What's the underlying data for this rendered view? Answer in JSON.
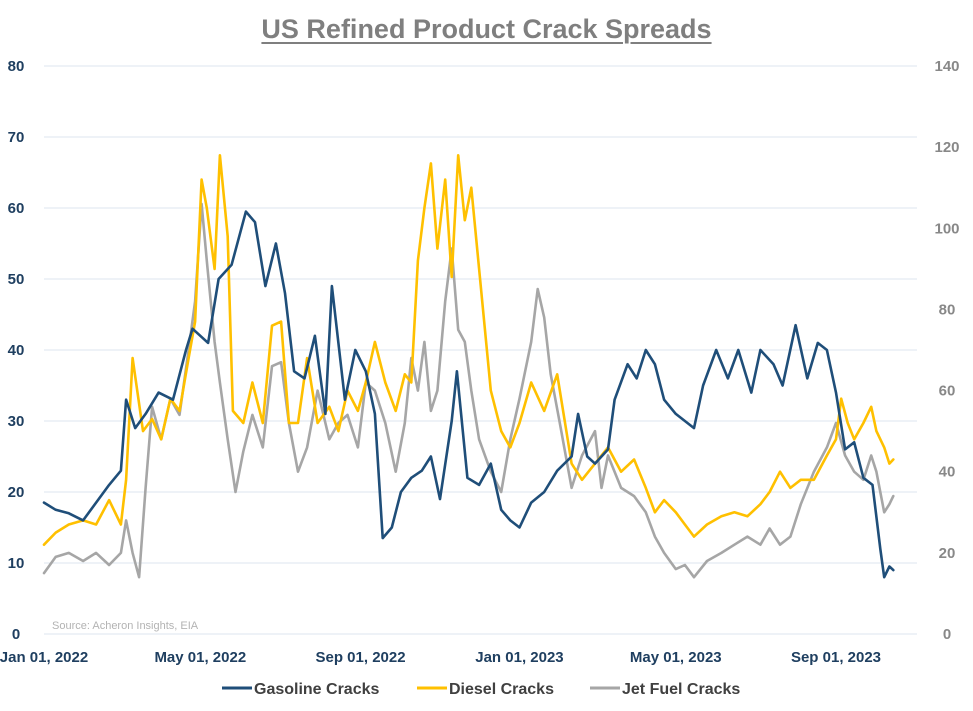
{
  "chart_data": {
    "type": "line",
    "title": "US Refined Product Crack Spreads",
    "source": "Source: Acheron Insights, EIA",
    "x_ticks": [
      "Jan 01, 2022",
      "May 01, 2022",
      "Sep 01, 2022",
      "Jan 01, 2023",
      "May 01, 2023",
      "Sep 01, 2023"
    ],
    "x_start": "2022-01-01",
    "x_end": "2023-10-15",
    "left_axis": {
      "ylim": [
        0,
        80
      ],
      "ticks": [
        "0",
        "10",
        "20",
        "30",
        "40",
        "50",
        "60",
        "70",
        "80"
      ]
    },
    "right_axis": {
      "ylim": [
        0,
        140
      ],
      "ticks": [
        "0",
        "20",
        "40",
        "60",
        "80",
        "100",
        "120",
        "140"
      ]
    },
    "grid": true,
    "legend_position": "bottom",
    "series": [
      {
        "name": "Gasoline Cracks",
        "axis": "left",
        "color": "#1f4e79",
        "points": [
          [
            "2022-01-01",
            18.5
          ],
          [
            "2022-01-10",
            17.5
          ],
          [
            "2022-01-20",
            17.0
          ],
          [
            "2022-01-31",
            16.0
          ],
          [
            "2022-02-10",
            18.5
          ],
          [
            "2022-02-20",
            21.0
          ],
          [
            "2022-03-01",
            23.0
          ],
          [
            "2022-03-05",
            33.0
          ],
          [
            "2022-03-12",
            29.0
          ],
          [
            "2022-03-20",
            31.0
          ],
          [
            "2022-03-30",
            34.0
          ],
          [
            "2022-04-10",
            33.0
          ],
          [
            "2022-04-20",
            40.0
          ],
          [
            "2022-04-25",
            43.0
          ],
          [
            "2022-05-01",
            42.0
          ],
          [
            "2022-05-07",
            41.0
          ],
          [
            "2022-05-15",
            50.0
          ],
          [
            "2022-05-25",
            52.0
          ],
          [
            "2022-06-05",
            59.5
          ],
          [
            "2022-06-12",
            58.0
          ],
          [
            "2022-06-20",
            49.0
          ],
          [
            "2022-06-28",
            55.0
          ],
          [
            "2022-07-05",
            48.0
          ],
          [
            "2022-07-12",
            37.0
          ],
          [
            "2022-07-20",
            36.0
          ],
          [
            "2022-07-28",
            42.0
          ],
          [
            "2022-08-05",
            31.0
          ],
          [
            "2022-08-10",
            49.0
          ],
          [
            "2022-08-20",
            33.0
          ],
          [
            "2022-08-28",
            40.0
          ],
          [
            "2022-09-05",
            37.0
          ],
          [
            "2022-09-12",
            31.0
          ],
          [
            "2022-09-18",
            13.5
          ],
          [
            "2022-09-25",
            15.0
          ],
          [
            "2022-10-02",
            20.0
          ],
          [
            "2022-10-10",
            22.0
          ],
          [
            "2022-10-18",
            23.0
          ],
          [
            "2022-10-25",
            25.0
          ],
          [
            "2022-11-01",
            19.0
          ],
          [
            "2022-11-10",
            30.0
          ],
          [
            "2022-11-14",
            37.0
          ],
          [
            "2022-11-22",
            22.0
          ],
          [
            "2022-12-01",
            21.0
          ],
          [
            "2022-12-10",
            24.0
          ],
          [
            "2022-12-18",
            17.5
          ],
          [
            "2022-12-25",
            16.0
          ],
          [
            "2023-01-01",
            15.0
          ],
          [
            "2023-01-10",
            18.5
          ],
          [
            "2023-01-20",
            20.0
          ],
          [
            "2023-01-30",
            23.0
          ],
          [
            "2023-02-10",
            25.0
          ],
          [
            "2023-02-15",
            31.0
          ],
          [
            "2023-02-22",
            25.0
          ],
          [
            "2023-02-28",
            24.0
          ],
          [
            "2023-03-10",
            26.0
          ],
          [
            "2023-03-15",
            33.0
          ],
          [
            "2023-03-25",
            38.0
          ],
          [
            "2023-04-01",
            36.0
          ],
          [
            "2023-04-08",
            40.0
          ],
          [
            "2023-04-15",
            38.0
          ],
          [
            "2023-04-22",
            33.0
          ],
          [
            "2023-05-01",
            31.0
          ],
          [
            "2023-05-08",
            30.0
          ],
          [
            "2023-05-15",
            29.0
          ],
          [
            "2023-05-22",
            35.0
          ],
          [
            "2023-06-01",
            40.0
          ],
          [
            "2023-06-10",
            36.0
          ],
          [
            "2023-06-18",
            40.0
          ],
          [
            "2023-06-28",
            34.0
          ],
          [
            "2023-07-05",
            40.0
          ],
          [
            "2023-07-15",
            38.0
          ],
          [
            "2023-07-22",
            35.0
          ],
          [
            "2023-08-01",
            43.5
          ],
          [
            "2023-08-10",
            36.0
          ],
          [
            "2023-08-18",
            41.0
          ],
          [
            "2023-08-25",
            40.0
          ],
          [
            "2023-09-01",
            34.0
          ],
          [
            "2023-09-08",
            26.0
          ],
          [
            "2023-09-15",
            27.0
          ],
          [
            "2023-09-22",
            22.0
          ],
          [
            "2023-09-29",
            21.0
          ],
          [
            "2023-10-05",
            12.0
          ],
          [
            "2023-10-08",
            8.0
          ],
          [
            "2023-10-12",
            9.5
          ],
          [
            "2023-10-15",
            9.0
          ]
        ]
      },
      {
        "name": "Diesel Cracks",
        "axis": "right",
        "color": "#ffc000",
        "points": [
          [
            "2022-01-01",
            22
          ],
          [
            "2022-01-10",
            25
          ],
          [
            "2022-01-20",
            27
          ],
          [
            "2022-01-31",
            28
          ],
          [
            "2022-02-10",
            27
          ],
          [
            "2022-02-20",
            33
          ],
          [
            "2022-03-01",
            27
          ],
          [
            "2022-03-05",
            38
          ],
          [
            "2022-03-10",
            68
          ],
          [
            "2022-03-18",
            50
          ],
          [
            "2022-03-25",
            53
          ],
          [
            "2022-04-01",
            48
          ],
          [
            "2022-04-08",
            58
          ],
          [
            "2022-04-15",
            55
          ],
          [
            "2022-04-22",
            68
          ],
          [
            "2022-04-27",
            77
          ],
          [
            "2022-05-02",
            112
          ],
          [
            "2022-05-06",
            105
          ],
          [
            "2022-05-12",
            90
          ],
          [
            "2022-05-16",
            118
          ],
          [
            "2022-05-22",
            98
          ],
          [
            "2022-05-26",
            55
          ],
          [
            "2022-06-03",
            52
          ],
          [
            "2022-06-10",
            62
          ],
          [
            "2022-06-18",
            52
          ],
          [
            "2022-06-25",
            76
          ],
          [
            "2022-07-02",
            77
          ],
          [
            "2022-07-08",
            52
          ],
          [
            "2022-07-15",
            52
          ],
          [
            "2022-07-22",
            68
          ],
          [
            "2022-07-30",
            52
          ],
          [
            "2022-08-08",
            56
          ],
          [
            "2022-08-15",
            50
          ],
          [
            "2022-08-22",
            60
          ],
          [
            "2022-08-30",
            55
          ],
          [
            "2022-09-05",
            62
          ],
          [
            "2022-09-12",
            72
          ],
          [
            "2022-09-20",
            62
          ],
          [
            "2022-09-28",
            55
          ],
          [
            "2022-10-05",
            64
          ],
          [
            "2022-10-10",
            62
          ],
          [
            "2022-10-15",
            92
          ],
          [
            "2022-10-20",
            105
          ],
          [
            "2022-10-25",
            116
          ],
          [
            "2022-10-30",
            95
          ],
          [
            "2022-11-05",
            112
          ],
          [
            "2022-11-10",
            88
          ],
          [
            "2022-11-15",
            118
          ],
          [
            "2022-11-20",
            102
          ],
          [
            "2022-11-25",
            110
          ],
          [
            "2022-12-01",
            90
          ],
          [
            "2022-12-10",
            60
          ],
          [
            "2022-12-18",
            50
          ],
          [
            "2022-12-25",
            46
          ],
          [
            "2023-01-01",
            52
          ],
          [
            "2023-01-10",
            62
          ],
          [
            "2023-01-20",
            55
          ],
          [
            "2023-01-30",
            64
          ],
          [
            "2023-02-10",
            42
          ],
          [
            "2023-02-18",
            38
          ],
          [
            "2023-02-28",
            42
          ],
          [
            "2023-03-10",
            46
          ],
          [
            "2023-03-20",
            40
          ],
          [
            "2023-03-30",
            43
          ],
          [
            "2023-04-08",
            36
          ],
          [
            "2023-04-15",
            30
          ],
          [
            "2023-04-22",
            33
          ],
          [
            "2023-05-01",
            30
          ],
          [
            "2023-05-08",
            27
          ],
          [
            "2023-05-15",
            24
          ],
          [
            "2023-05-25",
            27
          ],
          [
            "2023-06-05",
            29
          ],
          [
            "2023-06-15",
            30
          ],
          [
            "2023-06-25",
            29
          ],
          [
            "2023-07-05",
            32
          ],
          [
            "2023-07-12",
            35
          ],
          [
            "2023-07-20",
            40
          ],
          [
            "2023-07-28",
            36
          ],
          [
            "2023-08-05",
            38
          ],
          [
            "2023-08-15",
            38
          ],
          [
            "2023-08-25",
            44
          ],
          [
            "2023-09-01",
            48
          ],
          [
            "2023-09-05",
            58
          ],
          [
            "2023-09-10",
            52
          ],
          [
            "2023-09-15",
            48
          ],
          [
            "2023-09-22",
            52
          ],
          [
            "2023-09-28",
            56
          ],
          [
            "2023-10-02",
            50
          ],
          [
            "2023-10-08",
            46
          ],
          [
            "2023-10-12",
            42
          ],
          [
            "2023-10-15",
            43
          ]
        ]
      },
      {
        "name": "Jet Fuel Cracks",
        "axis": "right",
        "color": "#a6a6a6",
        "points": [
          [
            "2022-01-01",
            15
          ],
          [
            "2022-01-10",
            19
          ],
          [
            "2022-01-20",
            20
          ],
          [
            "2022-01-31",
            18
          ],
          [
            "2022-02-10",
            20
          ],
          [
            "2022-02-20",
            17
          ],
          [
            "2022-03-01",
            20
          ],
          [
            "2022-03-05",
            28
          ],
          [
            "2022-03-10",
            20
          ],
          [
            "2022-03-15",
            14
          ],
          [
            "2022-03-20",
            36
          ],
          [
            "2022-03-25",
            56
          ],
          [
            "2022-04-01",
            48
          ],
          [
            "2022-04-08",
            58
          ],
          [
            "2022-04-15",
            54
          ],
          [
            "2022-04-22",
            70
          ],
          [
            "2022-04-27",
            82
          ],
          [
            "2022-05-02",
            106
          ],
          [
            "2022-05-06",
            92
          ],
          [
            "2022-05-12",
            72
          ],
          [
            "2022-05-16",
            62
          ],
          [
            "2022-05-22",
            48
          ],
          [
            "2022-05-28",
            35
          ],
          [
            "2022-06-03",
            45
          ],
          [
            "2022-06-10",
            54
          ],
          [
            "2022-06-18",
            46
          ],
          [
            "2022-06-25",
            66
          ],
          [
            "2022-07-02",
            67
          ],
          [
            "2022-07-08",
            52
          ],
          [
            "2022-07-15",
            40
          ],
          [
            "2022-07-22",
            46
          ],
          [
            "2022-07-30",
            60
          ],
          [
            "2022-08-08",
            48
          ],
          [
            "2022-08-15",
            52
          ],
          [
            "2022-08-22",
            54
          ],
          [
            "2022-08-30",
            46
          ],
          [
            "2022-09-05",
            62
          ],
          [
            "2022-09-12",
            60
          ],
          [
            "2022-09-20",
            52
          ],
          [
            "2022-09-28",
            40
          ],
          [
            "2022-10-05",
            52
          ],
          [
            "2022-10-10",
            68
          ],
          [
            "2022-10-15",
            60
          ],
          [
            "2022-10-20",
            72
          ],
          [
            "2022-10-25",
            55
          ],
          [
            "2022-10-30",
            60
          ],
          [
            "2022-11-05",
            82
          ],
          [
            "2022-11-10",
            95
          ],
          [
            "2022-11-15",
            75
          ],
          [
            "2022-11-20",
            72
          ],
          [
            "2022-11-25",
            60
          ],
          [
            "2022-12-01",
            48
          ],
          [
            "2022-12-10",
            40
          ],
          [
            "2022-12-18",
            35
          ],
          [
            "2022-12-25",
            48
          ],
          [
            "2023-01-01",
            58
          ],
          [
            "2023-01-10",
            72
          ],
          [
            "2023-01-15",
            85
          ],
          [
            "2023-01-20",
            78
          ],
          [
            "2023-01-25",
            64
          ],
          [
            "2023-02-01",
            52
          ],
          [
            "2023-02-10",
            36
          ],
          [
            "2023-02-18",
            44
          ],
          [
            "2023-02-28",
            50
          ],
          [
            "2023-03-05",
            36
          ],
          [
            "2023-03-10",
            44
          ],
          [
            "2023-03-20",
            36
          ],
          [
            "2023-03-30",
            34
          ],
          [
            "2023-04-08",
            30
          ],
          [
            "2023-04-15",
            24
          ],
          [
            "2023-04-22",
            20
          ],
          [
            "2023-05-01",
            16
          ],
          [
            "2023-05-08",
            17
          ],
          [
            "2023-05-15",
            14
          ],
          [
            "2023-05-25",
            18
          ],
          [
            "2023-06-05",
            20
          ],
          [
            "2023-06-15",
            22
          ],
          [
            "2023-06-25",
            24
          ],
          [
            "2023-07-05",
            22
          ],
          [
            "2023-07-12",
            26
          ],
          [
            "2023-07-20",
            22
          ],
          [
            "2023-07-28",
            24
          ],
          [
            "2023-08-05",
            32
          ],
          [
            "2023-08-15",
            40
          ],
          [
            "2023-08-25",
            46
          ],
          [
            "2023-09-01",
            52
          ],
          [
            "2023-09-08",
            44
          ],
          [
            "2023-09-15",
            40
          ],
          [
            "2023-09-22",
            38
          ],
          [
            "2023-09-28",
            44
          ],
          [
            "2023-10-02",
            40
          ],
          [
            "2023-10-08",
            30
          ],
          [
            "2023-10-12",
            32
          ],
          [
            "2023-10-15",
            34
          ]
        ]
      }
    ]
  }
}
